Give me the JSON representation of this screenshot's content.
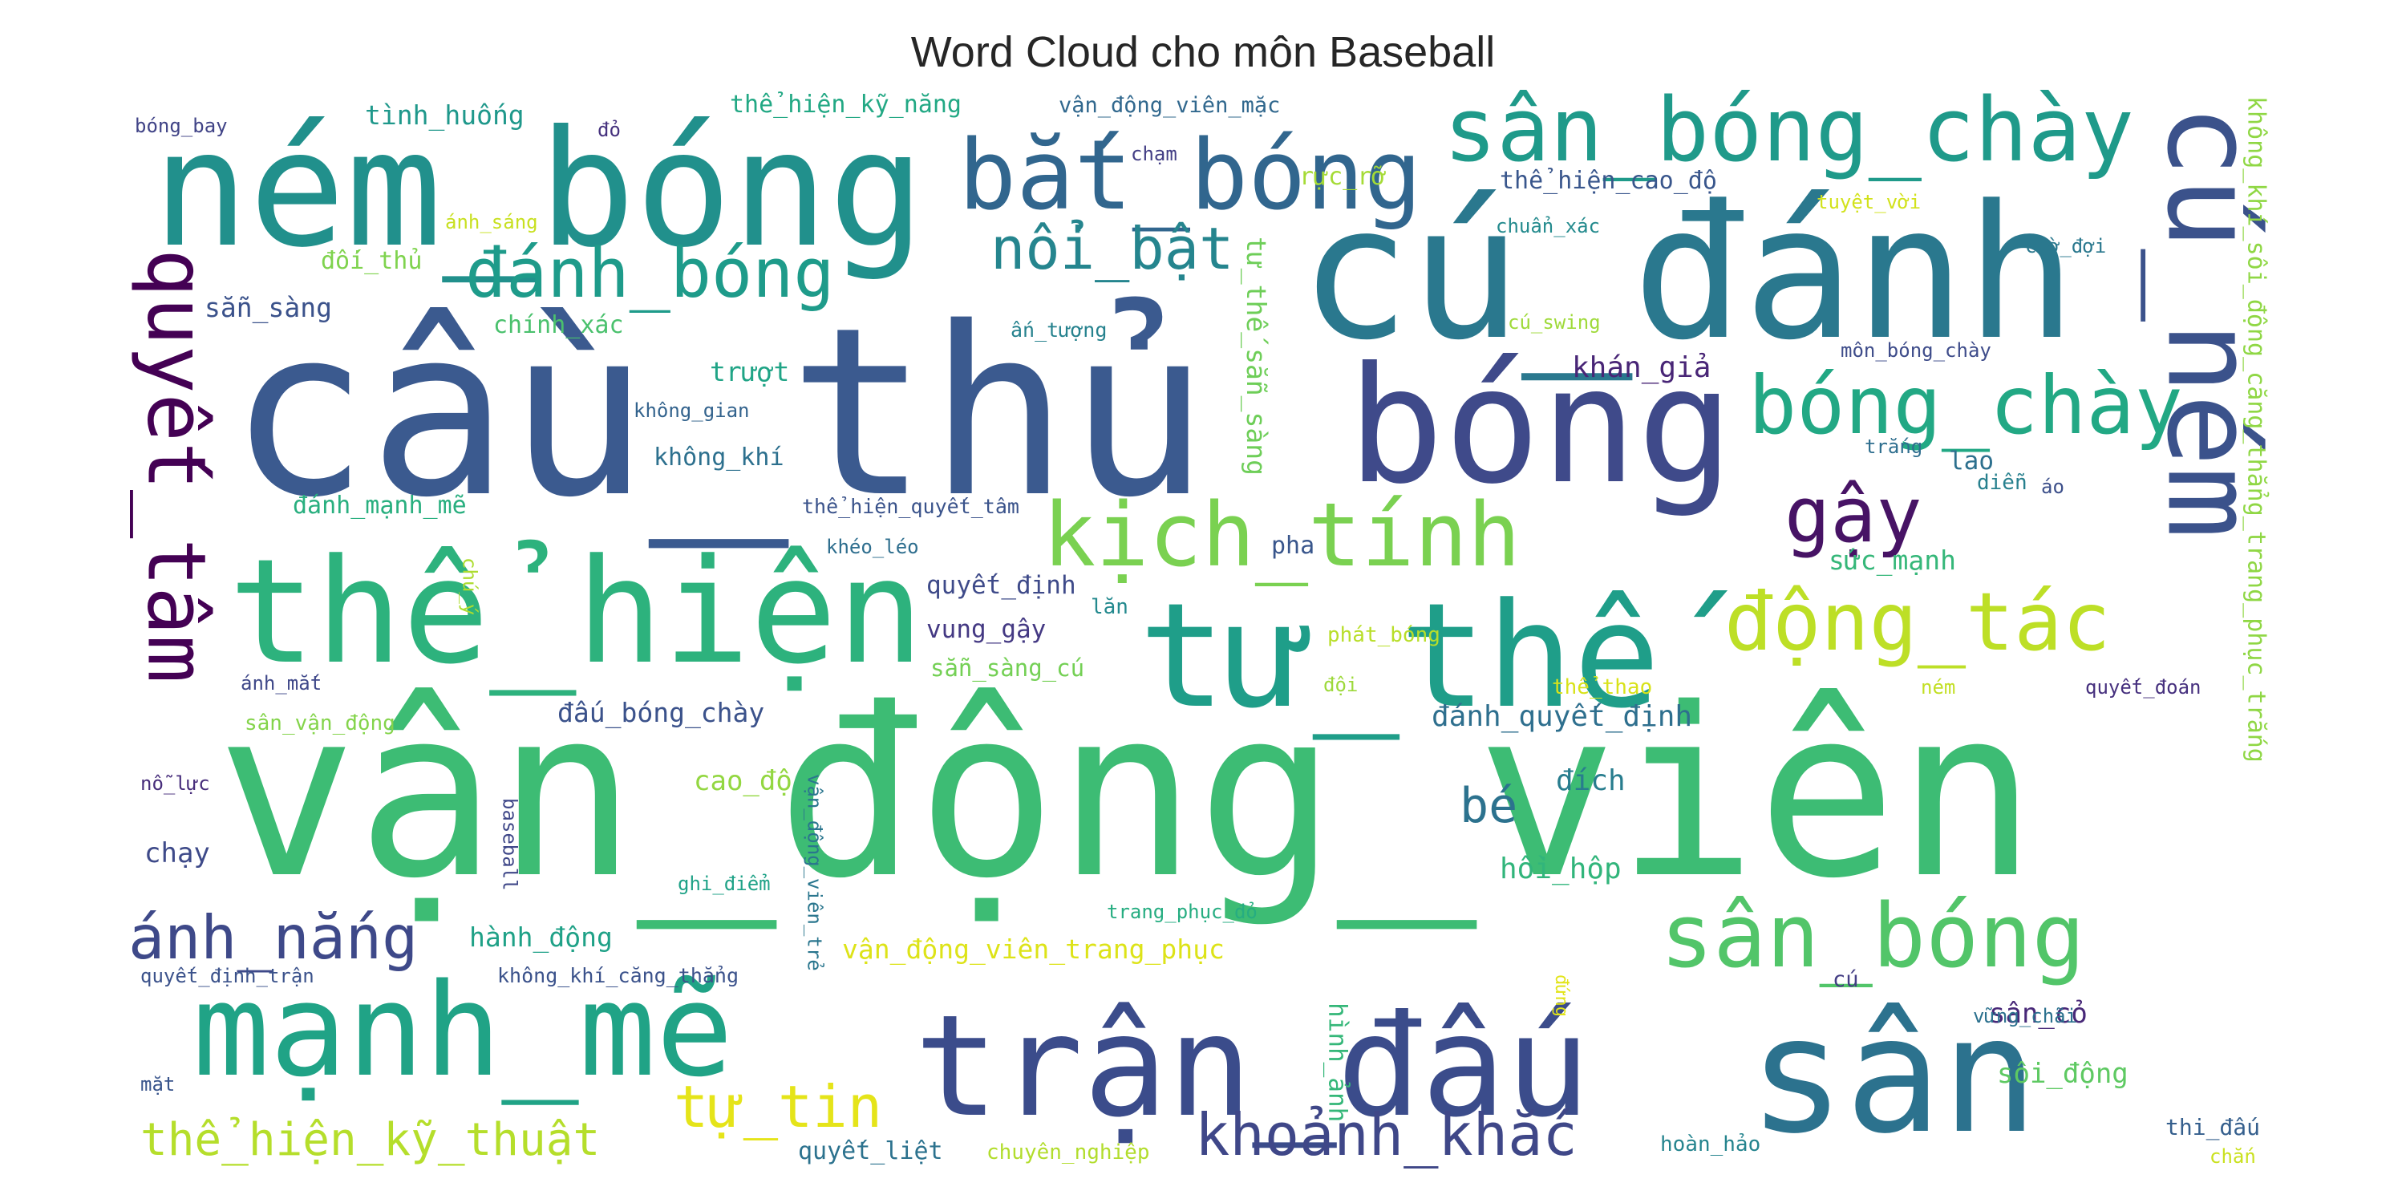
{
  "chart_data": {
    "type": "wordcloud",
    "title": "Word Cloud cho môn Baseball",
    "colormap": "viridis",
    "background": "#ffffff",
    "words": [
      {
        "text": "vận_động_viên",
        "color": "#3dbc74"
      },
      {
        "text": "cầu_thủ",
        "color": "#3b5a8f"
      },
      {
        "text": "cú_đánh",
        "color": "#2a788e"
      },
      {
        "text": "ném_bóng",
        "color": "#21908c"
      },
      {
        "text": "bóng",
        "color": "#3f4a8a"
      },
      {
        "text": "thể_hiện",
        "color": "#2db27d"
      },
      {
        "text": "trận_đấu",
        "color": "#3b4c8b"
      },
      {
        "text": "sân",
        "color": "#2c728e"
      },
      {
        "text": "tư_thế",
        "color": "#1f9e89"
      },
      {
        "text": "cú_ném",
        "color": "#3b528b"
      },
      {
        "text": "mạnh_mẽ",
        "color": "#20a386"
      },
      {
        "text": "bắt_bóng",
        "color": "#31668e"
      },
      {
        "text": "sân_bóng_chày",
        "color": "#1f9a8a"
      },
      {
        "text": "kịch_tính",
        "color": "#7ad151"
      },
      {
        "text": "sân_bóng",
        "color": "#52c569"
      },
      {
        "text": "bóng_chày",
        "color": "#22a884"
      },
      {
        "text": "quyết_tâm",
        "color": "#440154"
      },
      {
        "text": "động_tác",
        "color": "#bddf26"
      },
      {
        "text": "đánh_bóng",
        "color": "#1e9b8a"
      },
      {
        "text": "nổi_bật",
        "color": "#25858e"
      },
      {
        "text": "gậy",
        "color": "#471365"
      },
      {
        "text": "ánh_nắng",
        "color": "#3e4989"
      },
      {
        "text": "khoảnh_khắc",
        "color": "#3f4788"
      },
      {
        "text": "thể_hiện_kỹ_thuật",
        "color": "#b5de2b"
      },
      {
        "text": "tự_tin",
        "color": "#e5e419"
      },
      {
        "text": "bé",
        "color": "#2c728e"
      },
      {
        "text": "tư_thế_sẵn_sàng",
        "color": "#6ece58"
      },
      {
        "text": "không_khí_sôi_động_căng_thẳng_trang_phục_trắng",
        "color": "#8fd744"
      },
      {
        "text": "vận_động_viên_trang_phục",
        "color": "#dde318"
      },
      {
        "text": "hồi_hộp",
        "color": "#31b57b"
      },
      {
        "text": "đánh_quyết_định",
        "color": "#2e6f8e"
      },
      {
        "text": "đấu_bóng_chày",
        "color": "#3b528b"
      },
      {
        "text": "khán_giả",
        "color": "#482576"
      },
      {
        "text": "sức_mạnh",
        "color": "#35b779"
      },
      {
        "text": "quyết_định",
        "color": "#3e4a89"
      },
      {
        "text": "vung_gậy",
        "color": "#443983"
      },
      {
        "text": "sẵn_sàng_cú",
        "color": "#74d055"
      },
      {
        "text": "đích",
        "color": "#287d8e"
      },
      {
        "text": "hành_động",
        "color": "#1fa187"
      },
      {
        "text": "cao_độ",
        "color": "#93d741"
      },
      {
        "text": "chạy",
        "color": "#3e4a89"
      },
      {
        "text": "sân_cỏ",
        "color": "#482878"
      },
      {
        "text": "sôi_động",
        "color": "#5ec962"
      },
      {
        "text": "hình_ảnh",
        "color": "#35b779"
      },
      {
        "text": "quyết_liệt",
        "color": "#2c728e"
      },
      {
        "text": "tình_huống",
        "color": "#1f988b"
      },
      {
        "text": "thể_hiện_kỹ_năng",
        "color": "#22a884"
      },
      {
        "text": "vận_động_viên_mặc",
        "color": "#31688e"
      },
      {
        "text": "rực_rỡ",
        "color": "#a5db36"
      },
      {
        "text": "thể_hiện_cao_độ",
        "color": "#39568c"
      },
      {
        "text": "đối_thủ",
        "color": "#7fd34e"
      },
      {
        "text": "chính_xác",
        "color": "#4ac16d"
      },
      {
        "text": "sẵn_sàng",
        "color": "#3b528b"
      },
      {
        "text": "không_khí",
        "color": "#2d708e"
      },
      {
        "text": "đánh_mạnh_mẽ",
        "color": "#29af7f"
      },
      {
        "text": "trượt",
        "color": "#20a486"
      },
      {
        "text": "thể_hiện_quyết_tâm",
        "color": "#3a538b"
      },
      {
        "text": "ấn_tượng",
        "color": "#26828e"
      },
      {
        "text": "chạm",
        "color": "#433e85"
      },
      {
        "text": "đỏ",
        "color": "#46327e"
      },
      {
        "text": "ánh_sáng",
        "color": "#c8e020"
      },
      {
        "text": "tuyệt_vời",
        "color": "#d2e21b"
      },
      {
        "text": "chuẩn_xác",
        "color": "#238a8d"
      },
      {
        "text": "chờ_đợi",
        "color": "#2a788e"
      },
      {
        "text": "cú_swing",
        "color": "#9fda3a"
      },
      {
        "text": "môn_bóng_chày",
        "color": "#3e4c8a"
      },
      {
        "text": "không_gian",
        "color": "#33638d"
      },
      {
        "text": "trắng",
        "color": "#2e6e8e"
      },
      {
        "text": "lao",
        "color": "#2d708e"
      },
      {
        "text": "diễn",
        "color": "#27808e"
      },
      {
        "text": "áo",
        "color": "#3c4f8a"
      },
      {
        "text": "pha",
        "color": "#39568c"
      },
      {
        "text": "khéo_léo",
        "color": "#2e6e8e"
      },
      {
        "text": "chú_ý",
        "color": "#addc30"
      },
      {
        "text": "lăn",
        "color": "#23898e"
      },
      {
        "text": "phát_bóng",
        "color": "#b8de29"
      },
      {
        "text": "đội",
        "color": "#9dd93b"
      },
      {
        "text": "ánh_mắt",
        "color": "#3f4889"
      },
      {
        "text": "thể_thao",
        "color": "#d8e219"
      },
      {
        "text": "ném",
        "color": "#c2df23"
      },
      {
        "text": "quyết_đoán",
        "color": "#46307e"
      },
      {
        "text": "sân_vận_động",
        "color": "#84d44b"
      },
      {
        "text": "nỗ_lực",
        "color": "#472d7b"
      },
      {
        "text": "baseball",
        "color": "#3f4788"
      },
      {
        "text": "vận_động_viên_trẻ",
        "color": "#2a768e"
      },
      {
        "text": "ghi_điểm",
        "color": "#1fa287"
      },
      {
        "text": "trang_phục_đỏ",
        "color": "#26ad81"
      },
      {
        "text": "quyết_định_trận",
        "color": "#3b528b"
      },
      {
        "text": "không_khí_căng_thẳng",
        "color": "#3b528b"
      },
      {
        "text": "cú",
        "color": "#433d84"
      },
      {
        "text": "đứng",
        "color": "#e2e418"
      },
      {
        "text": "vững_chãi",
        "color": "#2c718e"
      },
      {
        "text": "chuyên_nghiệp",
        "color": "#b2dd2d"
      },
      {
        "text": "hoàn_hảo",
        "color": "#25848e"
      },
      {
        "text": "thi_đấu",
        "color": "#355f8d"
      },
      {
        "text": "chắn",
        "color": "#cae11f"
      },
      {
        "text": "mặt",
        "color": "#39558c"
      },
      {
        "text": "bóng_bay",
        "color": "#414487"
      }
    ]
  }
}
